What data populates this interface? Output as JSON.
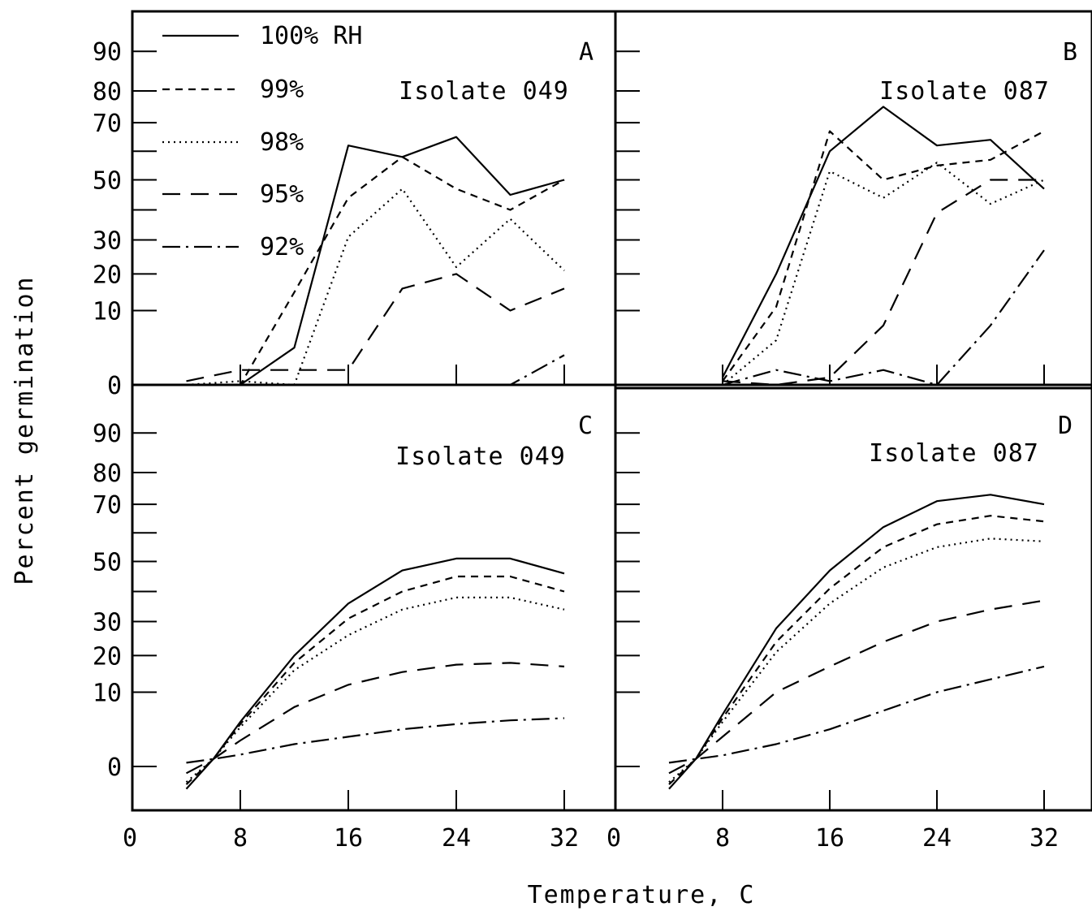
{
  "chart_data": [
    {
      "panel": "A",
      "type": "line",
      "title": "Isolate 049",
      "letter": "A",
      "y_tick_labels": [
        "0",
        "10",
        "20",
        "30",
        "50",
        "70",
        "80",
        "90"
      ],
      "series": [
        {
          "name": "100% RH",
          "dash": "solid",
          "x": [
            4,
            8,
            12,
            16,
            20,
            24,
            28,
            32
          ],
          "y": [
            0,
            0,
            5,
            62,
            58,
            65,
            45,
            50
          ]
        },
        {
          "name": "99%",
          "dash": "short",
          "x": [
            4,
            8,
            12,
            16,
            20,
            24,
            28,
            32
          ],
          "y": [
            0,
            0,
            15,
            44,
            58,
            47,
            40,
            50
          ]
        },
        {
          "name": "98%",
          "dash": "dot",
          "x": [
            4,
            8,
            12,
            16,
            20,
            24,
            28,
            32
          ],
          "y": [
            0,
            0.5,
            0,
            31,
            47,
            22,
            37,
            21
          ]
        },
        {
          "name": "95%",
          "dash": "long",
          "x": [
            4,
            8,
            12,
            16,
            20,
            24,
            28,
            32
          ],
          "y": [
            0.5,
            2,
            2,
            2,
            16,
            20,
            10,
            16
          ]
        },
        {
          "name": "92%",
          "dash": "dashdot",
          "x": [
            4,
            8,
            12,
            16,
            20,
            24,
            28,
            32
          ],
          "y": [
            0,
            0,
            0,
            0,
            0,
            0,
            0,
            4
          ]
        }
      ]
    },
    {
      "panel": "B",
      "type": "line",
      "title": "Isolate 087",
      "letter": "B",
      "series": [
        {
          "name": "100% RH",
          "dash": "solid",
          "x": [
            8,
            12,
            16,
            20,
            24,
            28,
            32
          ],
          "y": [
            1,
            20,
            60,
            75,
            62,
            64,
            47
          ]
        },
        {
          "name": "99%",
          "dash": "short",
          "x": [
            8,
            12,
            16,
            20,
            24,
            28,
            32
          ],
          "y": [
            0.5,
            11,
            67,
            50,
            55,
            57,
            67
          ]
        },
        {
          "name": "98%",
          "dash": "dot",
          "x": [
            8,
            12,
            16,
            20,
            24,
            28,
            32
          ],
          "y": [
            0,
            6,
            53,
            44,
            56,
            42,
            50
          ]
        },
        {
          "name": "95%",
          "dash": "long",
          "x": [
            8,
            12,
            16,
            20,
            24,
            28,
            32
          ],
          "y": [
            0.5,
            0,
            1,
            8,
            39,
            50,
            50
          ]
        },
        {
          "name": "92%",
          "dash": "dashdot",
          "x": [
            8,
            12,
            16,
            20,
            24,
            28,
            32
          ],
          "y": [
            0,
            2,
            0.5,
            2,
            0,
            8,
            27
          ]
        }
      ]
    },
    {
      "panel": "C",
      "type": "line",
      "title": "Isolate 049",
      "letter": "C",
      "y_tick_labels": [
        "0",
        "10",
        "20",
        "30",
        "50",
        "70",
        "80",
        "90"
      ],
      "series": [
        {
          "name": "100% RH",
          "dash": "solid",
          "x": [
            4,
            6,
            8,
            12,
            16,
            20,
            24,
            28,
            32
          ],
          "y": [
            -5,
            1,
            6,
            20,
            36,
            47,
            51,
            51,
            46
          ]
        },
        {
          "name": "99%",
          "dash": "short",
          "x": [
            4,
            6,
            8,
            12,
            16,
            20,
            24,
            28,
            32
          ],
          "y": [
            -4,
            1,
            5.7,
            18,
            31,
            40,
            45,
            45,
            40
          ]
        },
        {
          "name": "98%",
          "dash": "dot",
          "x": [
            4,
            6,
            8,
            12,
            16,
            20,
            24,
            28,
            32
          ],
          "y": [
            -3.5,
            1,
            5.3,
            16,
            26,
            34,
            38,
            38,
            34
          ]
        },
        {
          "name": "95%",
          "dash": "long",
          "x": [
            4,
            6,
            8,
            12,
            16,
            20,
            24,
            28,
            32
          ],
          "y": [
            -1.5,
            1,
            3.5,
            8,
            12,
            15.5,
            17.5,
            18,
            17
          ]
        },
        {
          "name": "92%",
          "dash": "dashdot",
          "x": [
            4,
            6,
            8,
            12,
            16,
            20,
            24,
            28,
            32
          ],
          "y": [
            0.5,
            1,
            1.6,
            3,
            4,
            5,
            5.7,
            6.2,
            6.5
          ]
        }
      ]
    },
    {
      "panel": "D",
      "type": "line",
      "title": "Isolate 087",
      "letter": "D",
      "series": [
        {
          "name": "100% RH",
          "dash": "solid",
          "x": [
            4,
            6,
            8,
            12,
            16,
            20,
            24,
            28,
            32
          ],
          "y": [
            -5,
            1,
            7,
            28,
            47,
            62,
            71,
            73,
            70
          ]
        },
        {
          "name": "99%",
          "dash": "short",
          "x": [
            4,
            6,
            8,
            12,
            16,
            20,
            24,
            28,
            32
          ],
          "y": [
            -4,
            1,
            6.5,
            24,
            41,
            55,
            63,
            66,
            64
          ]
        },
        {
          "name": "98%",
          "dash": "dot",
          "x": [
            4,
            6,
            8,
            12,
            16,
            20,
            24,
            28,
            32
          ],
          "y": [
            -3.5,
            1,
            6,
            21,
            36,
            48,
            55,
            58,
            57
          ]
        },
        {
          "name": "95%",
          "dash": "long",
          "x": [
            4,
            6,
            8,
            12,
            16,
            20,
            24,
            28,
            32
          ],
          "y": [
            -1.5,
            1,
            4,
            10,
            17,
            24,
            30,
            34,
            37
          ]
        },
        {
          "name": "92%",
          "dash": "dashdot",
          "x": [
            4,
            6,
            8,
            12,
            16,
            20,
            24,
            28,
            32
          ],
          "y": [
            0.5,
            1,
            1.5,
            3,
            5,
            7.5,
            10,
            13.5,
            17
          ]
        }
      ]
    }
  ],
  "legend": {
    "entries": [
      {
        "label": "100% RH",
        "dash": "solid"
      },
      {
        "label": "99%",
        "dash": "short"
      },
      {
        "label": "98%",
        "dash": "dot"
      },
      {
        "label": "95%",
        "dash": "long"
      },
      {
        "label": "92%",
        "dash": "dashdot"
      }
    ]
  },
  "x_tick_labels_left": [
    "0",
    "8",
    "16",
    "24",
    "32"
  ],
  "x_tick_labels_right": [
    "0",
    "8",
    "16",
    "24",
    "32"
  ],
  "xlabel": "Temperature, C",
  "ylabel": "Percent germination"
}
